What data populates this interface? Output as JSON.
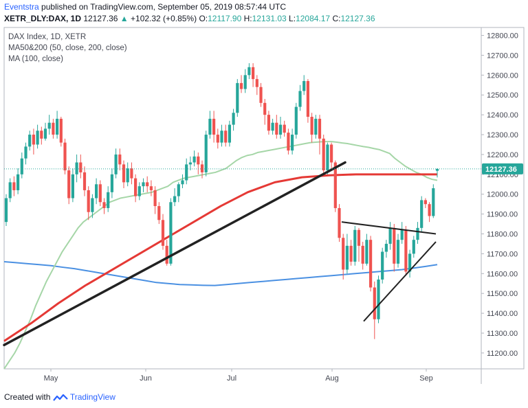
{
  "header": {
    "author": "Eventstra",
    "published_text": "published on TradingView.com, September 05, 2019 08:57:44 UTC",
    "symbol": "XETR_DLY:DAX, 1D",
    "last": "12127.36",
    "change_icon": "triangle-up-icon",
    "change": "+102.32 (+0.85%)",
    "o_label": "O:",
    "o_value": "12117.90",
    "h_label": "H:",
    "h_value": "12131.03",
    "l_label": "L:",
    "l_value": "12084.17",
    "c_label": "C:",
    "c_value": "12127.36"
  },
  "footer": {
    "created_with": "Created with",
    "logo_icon": "tradingview-logo-icon",
    "brand": "TradingView"
  },
  "colors": {
    "up": "#26a69a",
    "down": "#ef5350",
    "ma50": "#a5d6a7",
    "ma200": "#e53935",
    "ma100": "#4a90e2",
    "trend": "#222222",
    "price_tag": "#26a69a"
  },
  "chart_data": {
    "type": "candlestick",
    "legend": [
      "DAX Index, 1D, XETR",
      "MA50&200 (50, close, 200, close)",
      "MA (100, close)"
    ],
    "y_ticks": [
      "11200.00",
      "11300.00",
      "11400.00",
      "11500.00",
      "11600.00",
      "11700.00",
      "11800.00",
      "11900.00",
      "12000.00",
      "12100.00",
      "12200.00",
      "12300.00",
      "12400.00",
      "12500.00",
      "12600.00",
      "12700.00",
      "12800.00"
    ],
    "ylim": [
      11120,
      12840
    ],
    "x_ticks": [
      "May",
      "Jun",
      "Jul",
      "Aug",
      "Sep"
    ],
    "last_price_label": "12127.36",
    "last_price": 12127.36,
    "candles": [
      [
        11860,
        11980,
        11840,
        12000
      ],
      [
        11980,
        12060,
        11960,
        12080
      ],
      [
        12060,
        12020,
        11990,
        12090
      ],
      [
        12020,
        12100,
        12000,
        12130
      ],
      [
        12100,
        12180,
        12080,
        12210
      ],
      [
        12180,
        12240,
        12150,
        12260
      ],
      [
        12240,
        12300,
        12220,
        12320
      ],
      [
        12300,
        12250,
        12200,
        12330
      ],
      [
        12250,
        12320,
        12230,
        12350
      ],
      [
        12320,
        12280,
        12250,
        12340
      ],
      [
        12280,
        12330,
        12270,
        12360
      ],
      [
        12330,
        12360,
        12300,
        12400
      ],
      [
        12360,
        12300,
        12280,
        12380
      ],
      [
        12300,
        12380,
        12280,
        12420
      ],
      [
        12380,
        12260,
        12240,
        12390
      ],
      [
        12260,
        12120,
        12100,
        12280
      ],
      [
        12120,
        11980,
        11950,
        12140
      ],
      [
        11980,
        12100,
        11960,
        12130
      ],
      [
        12100,
        12160,
        12060,
        12200
      ],
      [
        12160,
        12110,
        12080,
        12200
      ],
      [
        12110,
        12020,
        11990,
        12140
      ],
      [
        12020,
        11910,
        11870,
        12040
      ],
      [
        11910,
        11980,
        11880,
        12000
      ],
      [
        11980,
        12050,
        11950,
        12080
      ],
      [
        12050,
        11960,
        11940,
        12070
      ],
      [
        11960,
        11930,
        11900,
        11980
      ],
      [
        11930,
        12010,
        11910,
        12040
      ],
      [
        12010,
        12100,
        11980,
        12130
      ],
      [
        12100,
        12200,
        12080,
        12230
      ],
      [
        12200,
        12150,
        12120,
        12230
      ],
      [
        12150,
        12060,
        12030,
        12170
      ],
      [
        12060,
        12130,
        12040,
        12160
      ],
      [
        12130,
        12080,
        12050,
        12160
      ],
      [
        12080,
        11990,
        11960,
        12100
      ],
      [
        11990,
        12040,
        11970,
        12060
      ],
      [
        12040,
        12060,
        12010,
        12080
      ],
      [
        12060,
        12040,
        12010,
        12090
      ],
      [
        12040,
        12020,
        11990,
        12070
      ],
      [
        12020,
        11940,
        11900,
        12040
      ],
      [
        11940,
        11870,
        11850,
        11960
      ],
      [
        11870,
        11740,
        11720,
        11900
      ],
      [
        11740,
        11650,
        11640,
        11770
      ],
      [
        11650,
        11960,
        11640,
        11980
      ],
      [
        11960,
        11990,
        11940,
        12030
      ],
      [
        11990,
        12050,
        11960,
        12060
      ],
      [
        12050,
        12070,
        12030,
        12100
      ],
      [
        12070,
        12150,
        12050,
        12180
      ],
      [
        12150,
        12160,
        12120,
        12190
      ],
      [
        12160,
        12190,
        12140,
        12220
      ],
      [
        12190,
        12150,
        12100,
        12210
      ],
      [
        12150,
        12110,
        12080,
        12170
      ],
      [
        12110,
        12300,
        12090,
        12320
      ],
      [
        12300,
        12380,
        12280,
        12420
      ],
      [
        12380,
        12300,
        12260,
        12420
      ],
      [
        12300,
        12260,
        12230,
        12330
      ],
      [
        12260,
        12320,
        12240,
        12350
      ],
      [
        12320,
        12260,
        12240,
        12350
      ],
      [
        12260,
        12350,
        12240,
        12370
      ],
      [
        12350,
        12410,
        12320,
        12430
      ],
      [
        12410,
        12560,
        12390,
        12580
      ],
      [
        12560,
        12530,
        12510,
        12600
      ],
      [
        12530,
        12600,
        12510,
        12630
      ],
      [
        12600,
        12640,
        12580,
        12660
      ],
      [
        12640,
        12580,
        12540,
        12660
      ],
      [
        12580,
        12540,
        12500,
        12600
      ],
      [
        12540,
        12460,
        12440,
        12560
      ],
      [
        12460,
        12400,
        12350,
        12480
      ],
      [
        12400,
        12320,
        12300,
        12420
      ],
      [
        12320,
        12360,
        12300,
        12380
      ],
      [
        12360,
        12300,
        12280,
        12400
      ],
      [
        12300,
        12350,
        12280,
        12390
      ],
      [
        12350,
        12310,
        12290,
        12370
      ],
      [
        12310,
        12220,
        12200,
        12330
      ],
      [
        12220,
        12300,
        12200,
        12330
      ],
      [
        12300,
        12440,
        12280,
        12460
      ],
      [
        12440,
        12520,
        12420,
        12550
      ],
      [
        12520,
        12570,
        12500,
        12600
      ],
      [
        12570,
        12390,
        12360,
        12580
      ],
      [
        12390,
        12300,
        12260,
        12410
      ],
      [
        12300,
        12380,
        12280,
        12400
      ],
      [
        12380,
        12280,
        12200,
        12400
      ],
      [
        12280,
        12120,
        12100,
        12300
      ],
      [
        12120,
        12250,
        12100,
        12260
      ],
      [
        12250,
        12160,
        12130,
        12260
      ],
      [
        12160,
        11930,
        11910,
        12170
      ],
      [
        11930,
        11780,
        11760,
        11950
      ],
      [
        11780,
        11620,
        11570,
        11800
      ],
      [
        11620,
        11740,
        11600,
        11800
      ],
      [
        11740,
        11660,
        11640,
        11770
      ],
      [
        11660,
        11820,
        11640,
        11840
      ],
      [
        11820,
        11740,
        11660,
        11830
      ],
      [
        11740,
        11650,
        11620,
        11760
      ],
      [
        11650,
        11770,
        11640,
        11800
      ],
      [
        11770,
        11530,
        11510,
        11790
      ],
      [
        11530,
        11370,
        11270,
        11560
      ],
      [
        11370,
        11570,
        11350,
        11590
      ],
      [
        11570,
        11710,
        11550,
        11730
      ],
      [
        11710,
        11750,
        11680,
        11770
      ],
      [
        11750,
        11830,
        11720,
        11860
      ],
      [
        11830,
        11650,
        11610,
        11850
      ],
      [
        11650,
        11770,
        11630,
        11800
      ],
      [
        11770,
        11820,
        11750,
        11860
      ],
      [
        11820,
        11610,
        11590,
        11840
      ],
      [
        11610,
        11700,
        11580,
        11720
      ],
      [
        11700,
        11770,
        11680,
        11790
      ],
      [
        11770,
        11830,
        11750,
        11860
      ],
      [
        11830,
        11970,
        11810,
        11990
      ],
      [
        11970,
        11950,
        11930,
        11980
      ],
      [
        11950,
        11890,
        11860,
        11960
      ],
      [
        11890,
        12030,
        11880,
        12050
      ],
      [
        12117.9,
        12127.36,
        12084.17,
        12131.03
      ]
    ],
    "ma50": [
      11120,
      11160,
      11200,
      11250,
      11310,
      11370,
      11440,
      11500,
      11560,
      11610,
      11660,
      11710,
      11750,
      11790,
      11830,
      11860,
      11880,
      11900,
      11920,
      11940,
      11960,
      11970,
      11980,
      11985,
      11990,
      11995,
      12000,
      12005,
      12010,
      12020,
      12030,
      12040,
      12060,
      12070,
      12080,
      12085,
      12090,
      12095,
      12100,
      12105,
      12110,
      12120,
      12130,
      12150,
      12170,
      12185,
      12195,
      12200,
      12210,
      12215,
      12220,
      12225,
      12230,
      12235,
      12240,
      12245,
      12250,
      12255,
      12260,
      12262,
      12264,
      12265,
      12265,
      12262,
      12258,
      12255,
      12250,
      12245,
      12240,
      12236,
      12230,
      12225,
      12215,
      12205,
      12180,
      12160,
      12140,
      12125,
      12110,
      12100,
      12085,
      12075,
      12070
    ],
    "ma100": [
      11660,
      11655,
      11650,
      11645,
      11640,
      11632,
      11625,
      11615,
      11605,
      11595,
      11585,
      11575,
      11565,
      11555,
      11550,
      11545,
      11543,
      11541,
      11540,
      11545,
      11550,
      11555,
      11560,
      11565,
      11570,
      11575,
      11580,
      11585,
      11590,
      11595,
      11600,
      11605,
      11610,
      11615,
      11620,
      11628,
      11636,
      11645
    ],
    "ma200": [
      11260,
      11350,
      11450,
      11540,
      11620,
      11700,
      11780,
      11860,
      11940,
      12010,
      12060,
      12085,
      12095,
      12100,
      12100,
      12100,
      12100
    ],
    "trendlines": [
      {
        "from": [
          "2019-04-11",
          11240
        ],
        "to": [
          "2019-08-01",
          12160
        ]
      },
      {
        "from": [
          "2019-08-07",
          11860
        ],
        "to": [
          "2019-09-03",
          11800
        ]
      },
      {
        "from": [
          "2019-08-14",
          11360
        ],
        "to": [
          "2019-09-03",
          11760
        ]
      }
    ]
  }
}
